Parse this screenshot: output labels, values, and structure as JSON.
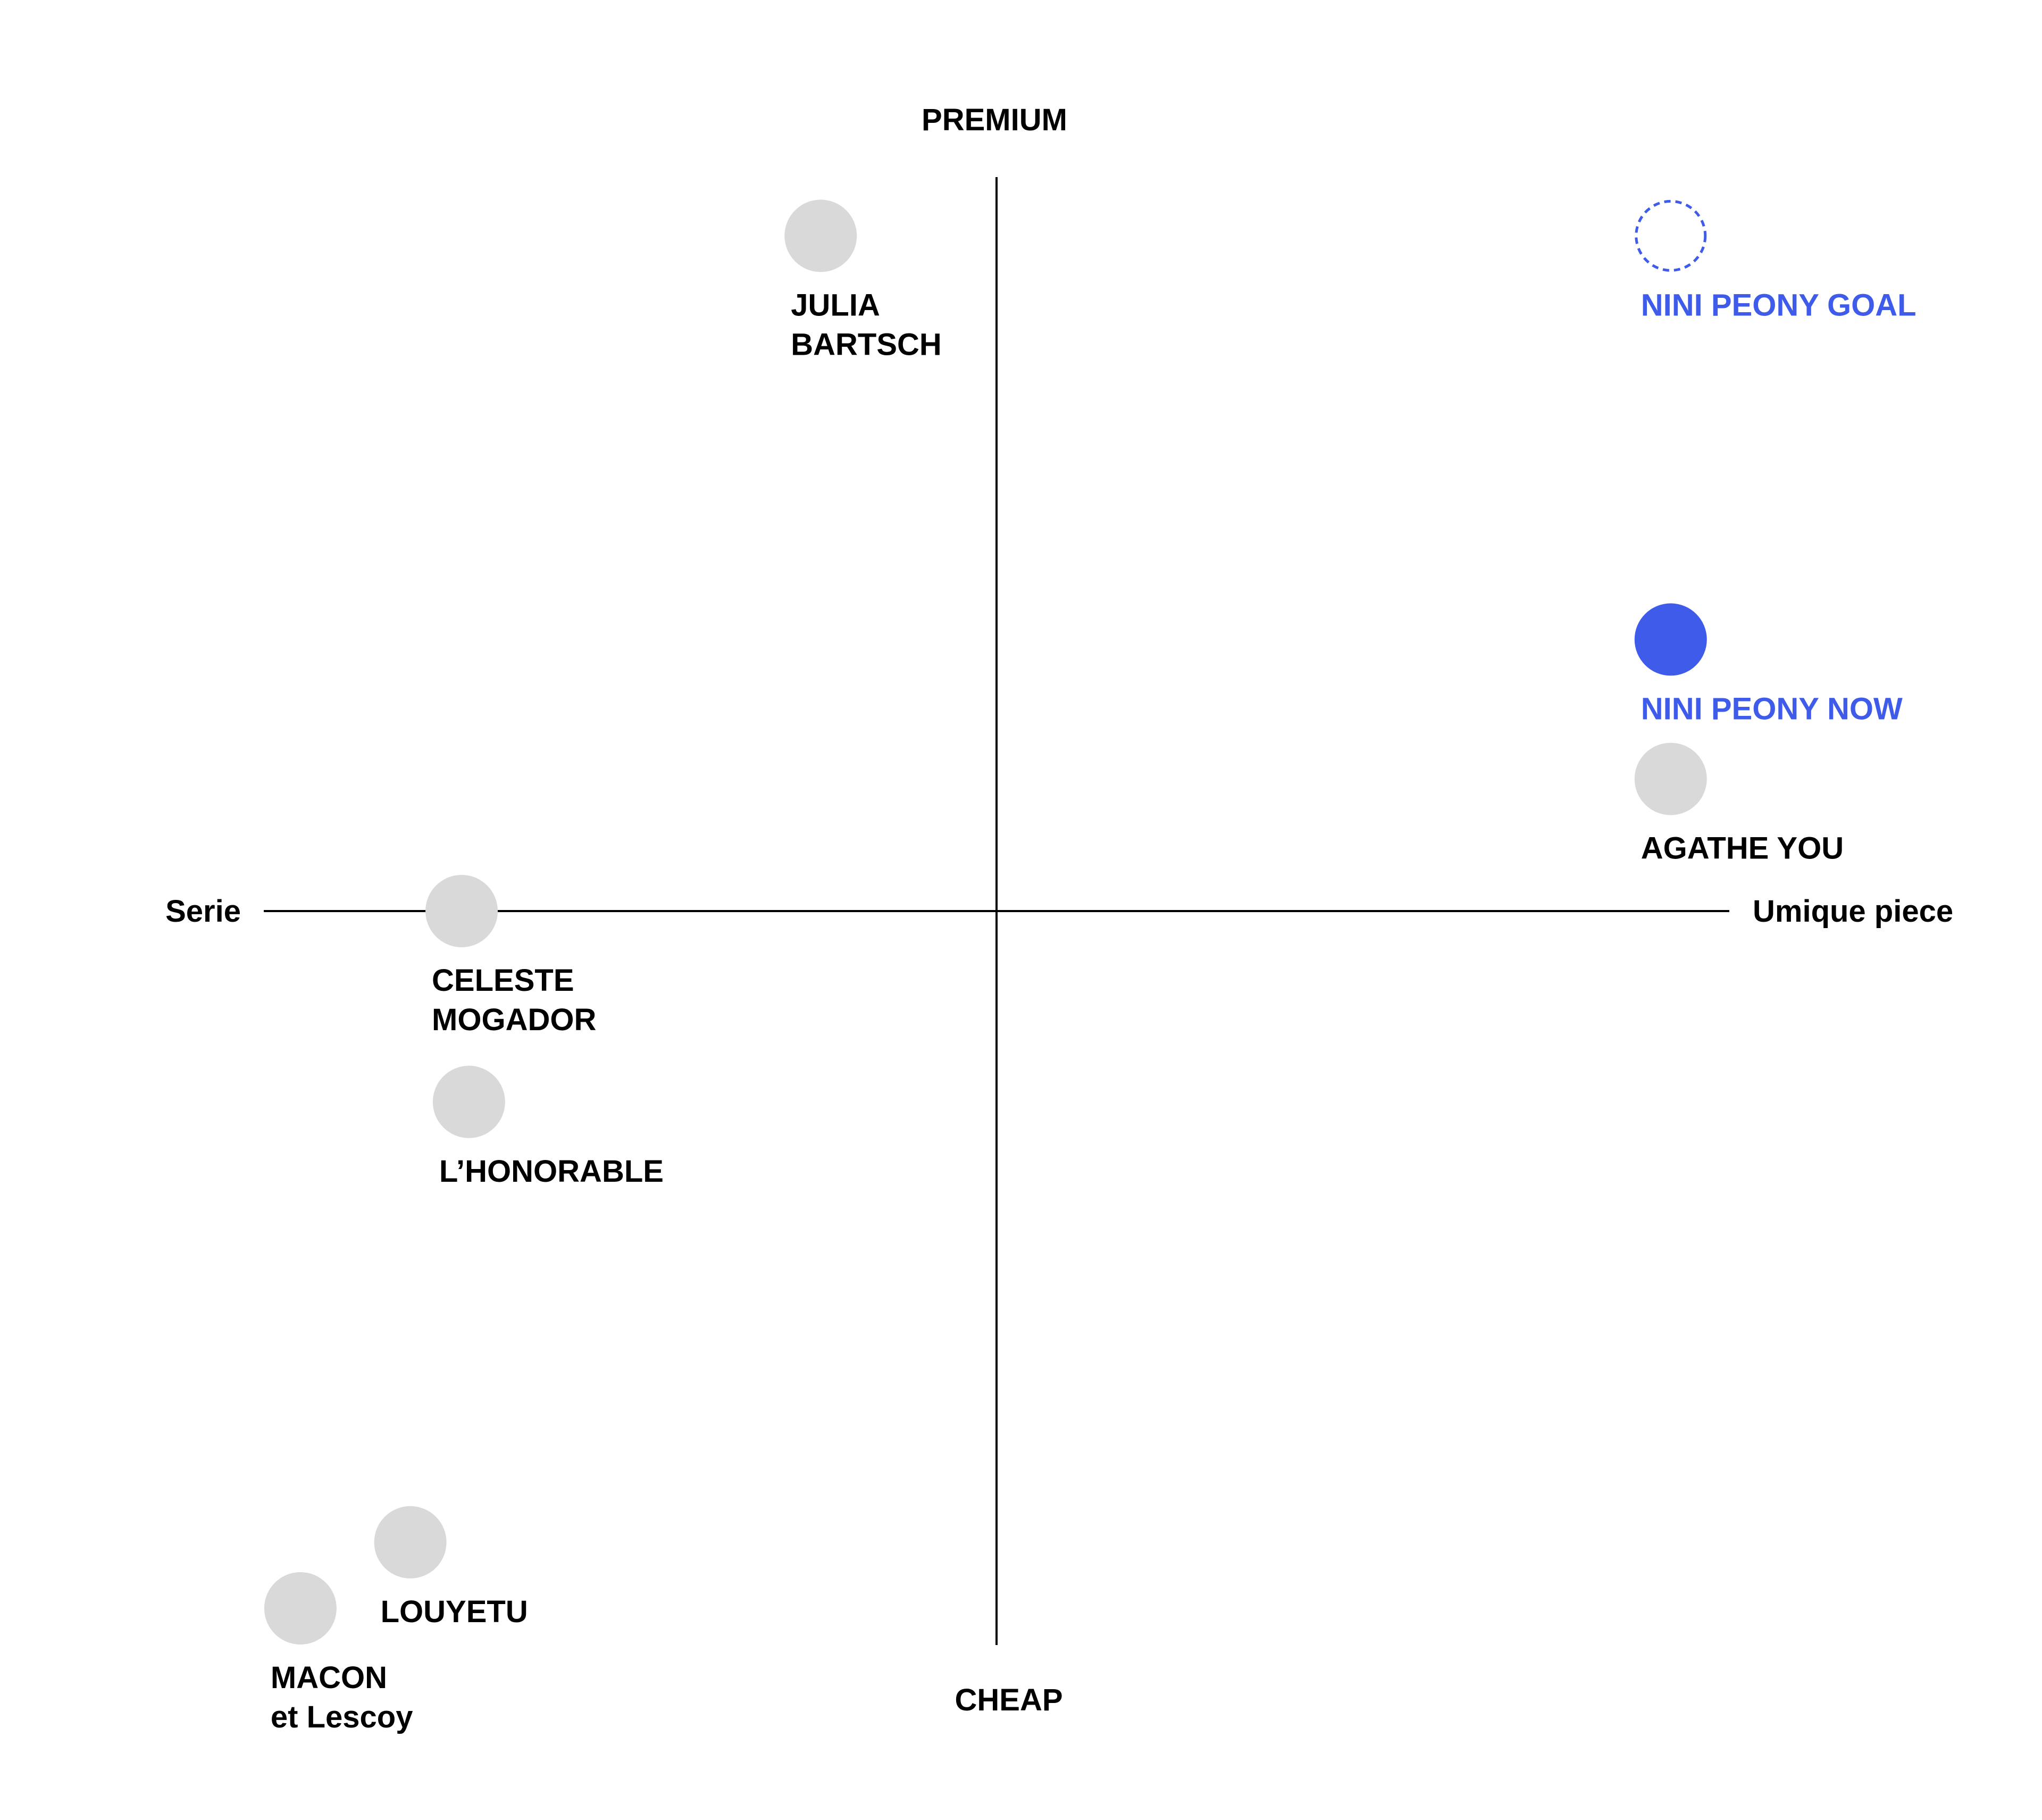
{
  "chart_data": {
    "type": "scatter",
    "title": "",
    "axes": {
      "top_label": "PREMIUM",
      "bottom_label": "CHEAP",
      "left_label": "Serie",
      "right_label": "Umique piece"
    },
    "xlim": [
      -1,
      1
    ],
    "ylim": [
      -1,
      1
    ],
    "grid": false,
    "colors": {
      "competitor": "#d9d9d9",
      "brand": "#3f5bea",
      "text": "#000000",
      "axis": "#000000"
    },
    "points": [
      {
        "name": "JULIA BARTSCH",
        "lines": [
          "JULIA",
          "BARTSCH"
        ],
        "x": -0.24,
        "y": 0.92,
        "style": "competitor"
      },
      {
        "name": "NINI PEONY GOAL",
        "lines": [
          "NINI PEONY GOAL"
        ],
        "x": 0.92,
        "y": 0.92,
        "style": "goal"
      },
      {
        "name": "NINI PEONY NOW",
        "lines": [
          "NINI PEONY NOW"
        ],
        "x": 0.92,
        "y": 0.37,
        "style": "current"
      },
      {
        "name": "AGATHE YOU",
        "lines": [
          "AGATHE YOU"
        ],
        "x": 0.92,
        "y": 0.18,
        "style": "competitor"
      },
      {
        "name": "CELESTE MOGADOR",
        "lines": [
          "CELESTE",
          "MOGADOR"
        ],
        "x": -0.73,
        "y": 0.0,
        "style": "competitor"
      },
      {
        "name": "L’HONORABLE",
        "lines": [
          "L’HONORABLE"
        ],
        "x": -0.72,
        "y": -0.26,
        "style": "competitor"
      },
      {
        "name": "LOUYETU",
        "lines": [
          "LOUYETU"
        ],
        "x": -0.8,
        "y": -0.86,
        "style": "competitor"
      },
      {
        "name": "MACON et Lescoy",
        "lines": [
          "MACON",
          "et Lescoy"
        ],
        "x": -0.95,
        "y": -0.95,
        "style": "competitor"
      }
    ]
  }
}
